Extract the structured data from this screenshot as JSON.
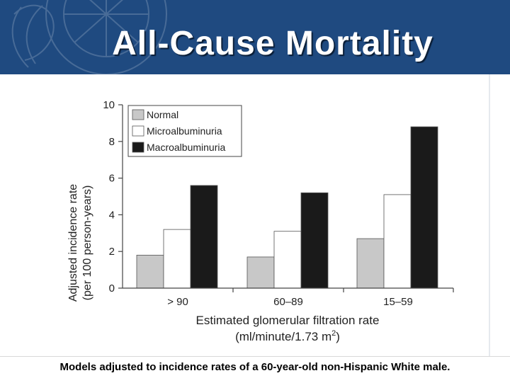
{
  "slide": {
    "title": "All-Cause Mortality",
    "caption": "Models adjusted to incidence rates of a 60-year-old non-Hispanic White male."
  },
  "colors": {
    "header_bg": "#1f4a80",
    "normal": "#c8c8c8",
    "micro": "#ffffff",
    "macro": "#1a1a1a"
  },
  "chart_data": {
    "type": "bar",
    "categories": [
      "> 90",
      "60–89",
      "15–59"
    ],
    "series": [
      {
        "name": "Normal",
        "color": "#c8c8c8",
        "values": [
          1.8,
          1.7,
          2.7
        ]
      },
      {
        "name": "Microalbuminuria",
        "color": "#ffffff",
        "values": [
          3.2,
          3.1,
          5.1
        ]
      },
      {
        "name": "Macroalbuminuria",
        "color": "#1a1a1a",
        "values": [
          5.6,
          5.2,
          8.8
        ]
      }
    ],
    "ylim": [
      0,
      10
    ],
    "yticks": [
      "0",
      "2",
      "4",
      "6",
      "8",
      "10"
    ],
    "ylabel_line1": "Adjusted incidence rate",
    "ylabel_line2": "(per 100 person-years)",
    "xlabel_line1": "Estimated glomerular filtration rate",
    "xlabel_line2": "(ml/minute/1.73 m",
    "xlabel_sup": "2",
    "xlabel_close": ")",
    "legend_position": "top-left"
  }
}
